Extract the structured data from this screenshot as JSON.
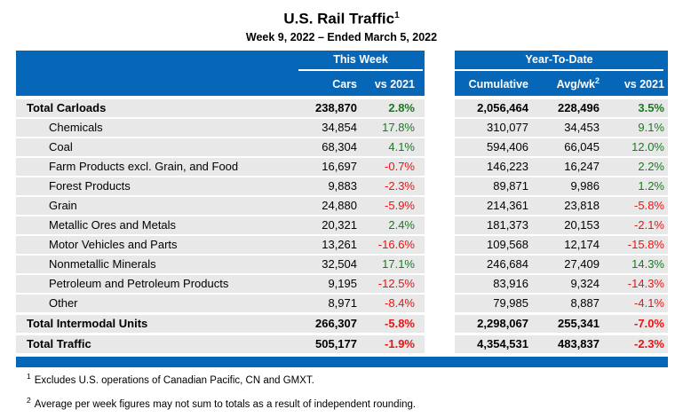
{
  "page": {
    "title": "U.S. Rail Traffic",
    "title_sup": "1",
    "subtitle": "Week 9, 2022 – Ended March 5, 2022"
  },
  "chart_data": {
    "type": "table",
    "title": "U.S. Rail Traffic",
    "subtitle": "Week 9, 2022 – Ended March 5, 2022",
    "column_groups": [
      "This Week",
      "Year-To-Date"
    ],
    "columns": [
      "Cars",
      "vs 2021",
      "Cumulative",
      "Avg/wk",
      "vs 2021"
    ],
    "avg_wk_sup": "2",
    "rows": [
      {
        "label": "Total Carloads",
        "is_total": true,
        "cars": "238,870",
        "this_week_vs_2021": "2.8%",
        "cumulative": "2,056,464",
        "avg_per_week": "228,496",
        "ytd_vs_2021": "3.5%"
      },
      {
        "label": "Chemicals",
        "is_total": false,
        "cars": "34,854",
        "this_week_vs_2021": "17.8%",
        "cumulative": "310,077",
        "avg_per_week": "34,453",
        "ytd_vs_2021": "9.1%"
      },
      {
        "label": "Coal",
        "is_total": false,
        "cars": "68,304",
        "this_week_vs_2021": "4.1%",
        "cumulative": "594,406",
        "avg_per_week": "66,045",
        "ytd_vs_2021": "12.0%"
      },
      {
        "label": "Farm Products excl. Grain, and Food",
        "is_total": false,
        "cars": "16,697",
        "this_week_vs_2021": "-0.7%",
        "cumulative": "146,223",
        "avg_per_week": "16,247",
        "ytd_vs_2021": "2.2%"
      },
      {
        "label": "Forest Products",
        "is_total": false,
        "cars": "9,883",
        "this_week_vs_2021": "-2.3%",
        "cumulative": "89,871",
        "avg_per_week": "9,986",
        "ytd_vs_2021": "1.2%"
      },
      {
        "label": "Grain",
        "is_total": false,
        "cars": "24,880",
        "this_week_vs_2021": "-5.9%",
        "cumulative": "214,361",
        "avg_per_week": "23,818",
        "ytd_vs_2021": "-5.8%"
      },
      {
        "label": "Metallic Ores and Metals",
        "is_total": false,
        "cars": "20,321",
        "this_week_vs_2021": "2.4%",
        "cumulative": "181,373",
        "avg_per_week": "20,153",
        "ytd_vs_2021": "-2.1%"
      },
      {
        "label": "Motor Vehicles and Parts",
        "is_total": false,
        "cars": "13,261",
        "this_week_vs_2021": "-16.6%",
        "cumulative": "109,568",
        "avg_per_week": "12,174",
        "ytd_vs_2021": "-15.8%"
      },
      {
        "label": "Nonmetallic Minerals",
        "is_total": false,
        "cars": "32,504",
        "this_week_vs_2021": "17.1%",
        "cumulative": "246,684",
        "avg_per_week": "27,409",
        "ytd_vs_2021": "14.3%"
      },
      {
        "label": "Petroleum and Petroleum Products",
        "is_total": false,
        "cars": "9,195",
        "this_week_vs_2021": "-12.5%",
        "cumulative": "83,916",
        "avg_per_week": "9,324",
        "ytd_vs_2021": "-14.3%"
      },
      {
        "label": "Other",
        "is_total": false,
        "cars": "8,971",
        "this_week_vs_2021": "-8.4%",
        "cumulative": "79,985",
        "avg_per_week": "8,887",
        "ytd_vs_2021": "-4.1%"
      },
      {
        "label": "Total Intermodal Units",
        "is_total": true,
        "cars": "266,307",
        "this_week_vs_2021": "-5.8%",
        "cumulative": "2,298,067",
        "avg_per_week": "255,341",
        "ytd_vs_2021": "-7.0%"
      },
      {
        "label": "Total Traffic",
        "is_total": true,
        "cars": "505,177",
        "this_week_vs_2021": "-1.9%",
        "cumulative": "4,354,531",
        "avg_per_week": "483,837",
        "ytd_vs_2021": "-2.3%"
      }
    ]
  },
  "footnotes": [
    {
      "sup": "1",
      "text": "Excludes U.S. operations of Canadian Pacific, CN and GMXT."
    },
    {
      "sup": "2",
      "text": "Average per week figures may not sum to totals as a result of independent rounding."
    }
  ],
  "colors": {
    "header_blue": "#0667b8",
    "positive_green": "#1a7a1f",
    "negative_red": "#ee1111",
    "row_gray": "#e8e8e8"
  }
}
